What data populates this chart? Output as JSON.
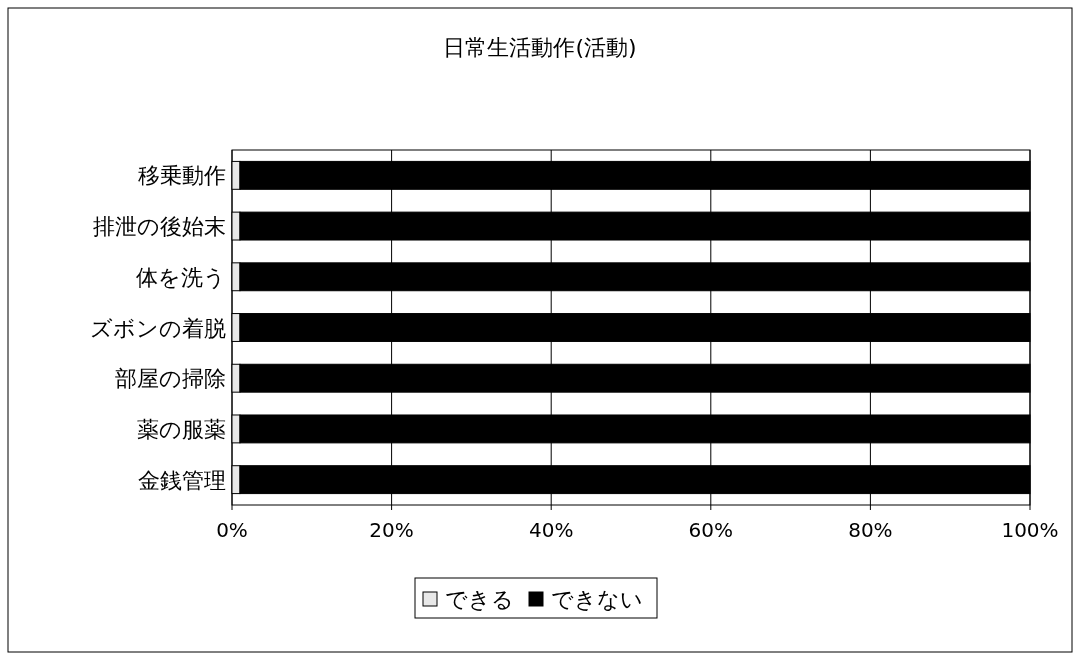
{
  "chart_data": {
    "type": "bar",
    "title": "日常生活動作(活動)",
    "orientation": "horizontal",
    "stacked": true,
    "categories": [
      "移乗動作",
      "排泄の後始末",
      "体を洗う",
      "ズボンの着脱",
      "部屋の掃除",
      "薬の服薬",
      "金銭管理"
    ],
    "series": [
      {
        "name": "できる",
        "color": "#e8e8e8",
        "values": [
          1,
          1,
          1,
          1,
          1,
          1,
          1
        ]
      },
      {
        "name": "できない",
        "color": "#000000",
        "values": [
          99,
          99,
          99,
          99,
          99,
          99,
          99
        ]
      }
    ],
    "xlim": [
      0,
      100
    ],
    "xticks": [
      {
        "value": 0,
        "label": "0%"
      },
      {
        "value": 20,
        "label": "20%"
      },
      {
        "value": 40,
        "label": "40%"
      },
      {
        "value": 60,
        "label": "60%"
      },
      {
        "value": 80,
        "label": "80%"
      },
      {
        "value": 100,
        "label": "100%"
      }
    ],
    "grid": "x",
    "legend": "bottom"
  }
}
